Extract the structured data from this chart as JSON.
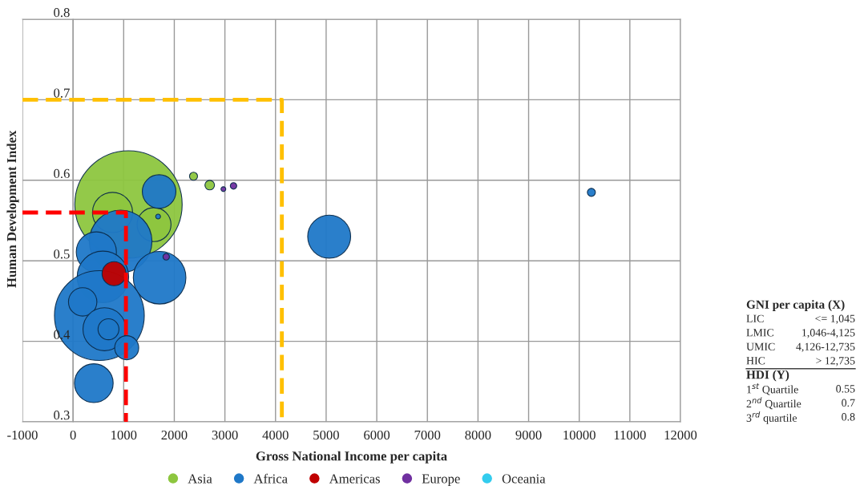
{
  "chart_data": {
    "type": "bubble",
    "xlabel": "Gross National Income per capita",
    "ylabel": "Human Development Index",
    "xlim": [
      -1000,
      12000
    ],
    "xticks": [
      -1000,
      0,
      1000,
      2000,
      3000,
      4000,
      5000,
      6000,
      7000,
      8000,
      9000,
      10000,
      11000,
      12000
    ],
    "ylim": [
      0.3,
      0.8
    ],
    "yticks": [
      0.3,
      0.4,
      0.5,
      0.6,
      0.7,
      0.8
    ],
    "grid": true,
    "legend": "bottom",
    "series": [
      {
        "name": "Asia",
        "color": "#8dc63f",
        "x": [
          1095,
          780,
          1600,
          2380,
          2700
        ],
        "values": [
          0.57,
          0.56,
          0.545,
          0.605,
          0.594
        ],
        "sizes": [
          1,
          0.14,
          0.1,
          0.0056,
          0.008
        ]
      },
      {
        "name": "Africa",
        "color": "#1f78c8",
        "x": [
          1700,
          1680,
          940,
          460,
          590,
          1710,
          520,
          190,
          620,
          700,
          1060,
          410,
          5060,
          10240
        ],
        "values": [
          0.586,
          0.555,
          0.524,
          0.511,
          0.48,
          0.479,
          0.432,
          0.449,
          0.415,
          0.415,
          0.392,
          0.348,
          0.53,
          0.585
        ],
        "sizes": [
          0.098,
          0.002,
          0.34,
          0.14,
          0.23,
          0.24,
          0.7,
          0.07,
          0.16,
          0.038,
          0.05,
          0.13,
          0.16,
          0.0056
        ]
      },
      {
        "name": "Americas",
        "color": "#c00000",
        "x": [
          810
        ],
        "values": [
          0.484
        ],
        "sizes": [
          0.05
        ]
      },
      {
        "name": "Europe",
        "color": "#7030a0",
        "x": [
          2970,
          3170,
          1840
        ],
        "values": [
          0.589,
          0.593,
          0.505
        ],
        "sizes": [
          0.002,
          0.0036,
          0.0036
        ]
      },
      {
        "name": "Oceania",
        "color": "#33ccee"
      },
      {
        "type": "line",
        "color": "#ff0000",
        "line_style": "dashed",
        "x": [
          -1000,
          1045,
          1045
        ],
        "values": [
          0.56,
          0.56,
          0.3
        ]
      },
      {
        "type": "line",
        "color": "#ffc000",
        "line_style": "dashed",
        "x": [
          -1000,
          4125,
          4125
        ],
        "values": [
          0.7,
          0.7,
          0.3
        ]
      }
    ],
    "annotations": [
      "GNI per capita (X)",
      "LIC",
      "<= 1,045",
      "LMIC",
      "1,046-4,125",
      "UMIC",
      "4,126-12,735",
      "HIC",
      "> 12,735",
      "HDI (Y)",
      "1$^{st}$ Quartile",
      "0.55",
      "2$^{nd}$ Quartile",
      "0.7",
      "3$^{rd}$ quartile",
      "0.8"
    ]
  }
}
